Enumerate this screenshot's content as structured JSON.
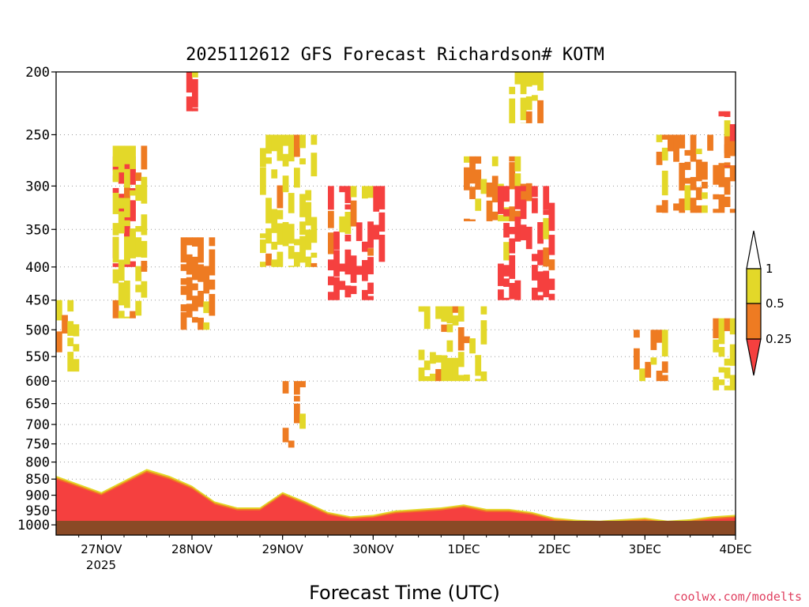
{
  "chart_data": {
    "type": "heatmap",
    "title": "2025112612 GFS Forecast Richardson# KOTM",
    "xlabel": "Forecast Time (UTC)",
    "ylabel": "",
    "x_ticks": [
      "27NOV",
      "28NOV",
      "29NOV",
      "30NOV",
      "1DEC",
      "2DEC",
      "3DEC",
      "4DEC"
    ],
    "x_year_label": "2025",
    "y_ticks": [
      200,
      250,
      300,
      350,
      400,
      450,
      500,
      550,
      600,
      650,
      700,
      750,
      800,
      850,
      900,
      950,
      1000
    ],
    "x_range_days": [
      "2025-11-26 12Z",
      "2025-12-04 00Z"
    ],
    "y_range_hpa": [
      200,
      1000
    ],
    "colorbar": {
      "labels": [
        "1",
        "0.5",
        "0.25"
      ],
      "bins": [
        {
          "range": "0.5-1",
          "color": "#e3d829"
        },
        {
          "range": "0.25-0.5",
          "color": "#ee7b22"
        },
        {
          "range": "<0.25",
          "color": "#f5403f"
        }
      ],
      "overflow_top_color": "#ffffff",
      "overflow_bottom_color": "#f5403f"
    },
    "regions": [
      {
        "start": "2025-11-26 12Z",
        "end": "2025-11-26 18Z",
        "top": 450,
        "bottom": 580,
        "level": "0.5-1"
      },
      {
        "start": "2025-11-27 03Z",
        "end": "2025-11-27 09Z",
        "top": 270,
        "bottom": 400,
        "level": "<0.25"
      },
      {
        "start": "2025-11-27 03Z",
        "end": "2025-11-27 12Z",
        "top": 260,
        "bottom": 480,
        "level": "0.5-1"
      },
      {
        "start": "2025-11-27 21Z",
        "end": "2025-11-28 03Z",
        "top": 200,
        "bottom": 230,
        "level": "<0.25"
      },
      {
        "start": "2025-11-27 21Z",
        "end": "2025-11-28 06Z",
        "top": 360,
        "bottom": 500,
        "level": "0.25-0.5"
      },
      {
        "start": "2025-11-28 18Z",
        "end": "2025-11-29 09Z",
        "top": 250,
        "bottom": 400,
        "level": "0.5-1"
      },
      {
        "start": "2025-11-29 12Z",
        "end": "2025-11-30 03Z",
        "top": 300,
        "bottom": 450,
        "level": "<0.25"
      },
      {
        "start": "2025-11-29 00Z",
        "end": "2025-11-29 06Z",
        "top": 600,
        "bottom": 760,
        "level": "0.25-0.5"
      },
      {
        "start": "2025-11-30 12Z",
        "end": "2025-12-01 06Z",
        "top": 460,
        "bottom": 600,
        "level": "0.5-1"
      },
      {
        "start": "2025-12-01 00Z",
        "end": "2025-12-01 18Z",
        "top": 270,
        "bottom": 340,
        "level": "0.25-0.5"
      },
      {
        "start": "2025-12-01 09Z",
        "end": "2025-12-02 00Z",
        "top": 300,
        "bottom": 450,
        "level": "<0.25"
      },
      {
        "start": "2025-12-01 12Z",
        "end": "2025-12-01 21Z",
        "top": 200,
        "bottom": 240,
        "level": "0.5-1"
      },
      {
        "start": "2025-12-02 21Z",
        "end": "2025-12-03 06Z",
        "top": 500,
        "bottom": 600,
        "level": "0.25-0.5"
      },
      {
        "start": "2025-12-03 03Z",
        "end": "2025-12-04 00Z",
        "top": 250,
        "bottom": 330,
        "level": "0.25-0.5"
      },
      {
        "start": "2025-12-03 18Z",
        "end": "2025-12-04 00Z",
        "top": 230,
        "bottom": 280,
        "level": "<0.25"
      },
      {
        "start": "2025-12-03 18Z",
        "end": "2025-12-04 00Z",
        "top": 480,
        "bottom": 620,
        "level": "0.5-1"
      },
      {
        "start": "2025-11-26 12Z",
        "end": "2025-12-04 00Z",
        "top": 830,
        "bottom": 1000,
        "level": "<0.25",
        "note_kind": "boundary-layer"
      }
    ],
    "ground_color": "#8a4a26",
    "gridlines": "dotted-horizontal"
  },
  "credit": "coolwx.com/modelts"
}
